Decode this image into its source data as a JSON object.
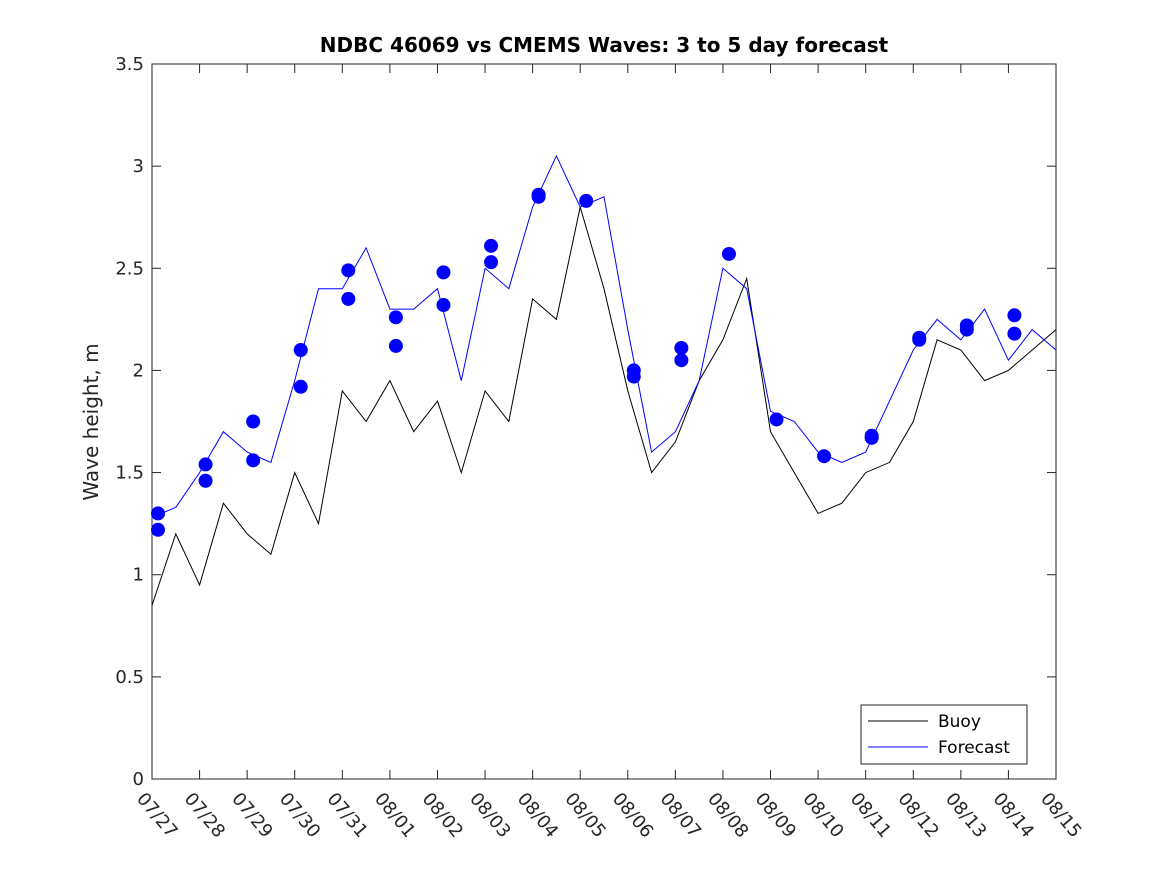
{
  "chart_data": {
    "type": "line",
    "title": "NDBC 46069 vs CMEMS Waves: 3 to 5 day forecast",
    "xlabel": "",
    "ylabel": "Wave height, m",
    "ylim": [
      0,
      3.5
    ],
    "xlim": [
      "07/27",
      "08/15"
    ],
    "grid": false,
    "legend_placement": "bottom-right",
    "x_ticks": [
      "07/27",
      "07/28",
      "07/29",
      "07/30",
      "07/31",
      "08/01",
      "08/02",
      "08/03",
      "08/04",
      "08/05",
      "08/06",
      "08/07",
      "08/08",
      "08/09",
      "08/10",
      "08/11",
      "08/12",
      "08/13",
      "08/14",
      "08/15"
    ],
    "y_ticks": [
      "0",
      "0.5",
      "1",
      "1.5",
      "2",
      "2.5",
      "3",
      "3.5"
    ],
    "colors": {
      "buoy": "#000000",
      "forecast": "#0000ff"
    },
    "series": [
      {
        "name": "Buoy",
        "x": [
          "07/27",
          "07/27 12:00",
          "07/28",
          "07/28 12:00",
          "07/29",
          "07/29 12:00",
          "07/30",
          "07/30 12:00",
          "07/31",
          "07/31 12:00",
          "08/01",
          "08/01 12:00",
          "08/02",
          "08/02 12:00",
          "08/03",
          "08/03 12:00",
          "08/04",
          "08/04 12:00",
          "08/05",
          "08/05 12:00",
          "08/06",
          "08/06 12:00",
          "08/07",
          "08/07 12:00",
          "08/08",
          "08/08 12:00",
          "08/09",
          "08/09 12:00",
          "08/10",
          "08/10 12:00",
          "08/11",
          "08/11 12:00",
          "08/12",
          "08/12 12:00",
          "08/13",
          "08/13 12:00",
          "08/14",
          "08/14 12:00",
          "08/15"
        ],
        "values": [
          0.85,
          1.2,
          0.95,
          1.35,
          1.2,
          1.1,
          1.5,
          1.25,
          1.9,
          1.75,
          1.95,
          1.7,
          1.85,
          1.5,
          1.9,
          1.75,
          2.35,
          2.25,
          2.8,
          2.4,
          1.9,
          1.5,
          1.65,
          1.95,
          2.15,
          2.45,
          1.7,
          1.5,
          1.3,
          1.35,
          1.5,
          1.55,
          1.75,
          2.15,
          2.1,
          1.95,
          2.0,
          2.1,
          2.2
        ]
      },
      {
        "name": "Forecast",
        "x": [
          "07/27",
          "07/27 12:00",
          "07/28",
          "07/28 12:00",
          "07/29",
          "07/29 12:00",
          "07/30",
          "07/30 12:00",
          "07/31",
          "07/31 12:00",
          "08/01",
          "08/01 12:00",
          "08/02",
          "08/02 12:00",
          "08/03",
          "08/03 12:00",
          "08/04",
          "08/04 12:00",
          "08/05",
          "08/05 12:00",
          "08/06",
          "08/06 12:00",
          "08/07",
          "08/07 12:00",
          "08/08",
          "08/08 12:00",
          "08/09",
          "08/09 12:00",
          "08/10",
          "08/10 12:00",
          "08/11",
          "08/11 12:00",
          "08/12",
          "08/12 12:00",
          "08/13",
          "08/13 12:00",
          "08/14",
          "08/14 12:00",
          "08/15"
        ],
        "values": [
          1.28,
          1.33,
          1.5,
          1.7,
          1.6,
          1.55,
          1.95,
          2.4,
          2.4,
          2.6,
          2.3,
          2.3,
          2.4,
          1.95,
          2.5,
          2.4,
          2.8,
          3.05,
          2.8,
          2.85,
          2.2,
          1.6,
          1.7,
          1.95,
          2.5,
          2.4,
          1.8,
          1.75,
          1.6,
          1.55,
          1.6,
          1.85,
          2.1,
          2.25,
          2.15,
          2.3,
          2.05,
          2.2,
          2.1
        ]
      }
    ],
    "markers": {
      "series": "Forecast",
      "points": [
        {
          "x": "07/27",
          "y": 1.3
        },
        {
          "x": "07/27",
          "y": 1.22
        },
        {
          "x": "07/28",
          "y": 1.54
        },
        {
          "x": "07/28",
          "y": 1.46
        },
        {
          "x": "07/29",
          "y": 1.75
        },
        {
          "x": "07/29",
          "y": 1.56
        },
        {
          "x": "07/30",
          "y": 2.1
        },
        {
          "x": "07/30",
          "y": 1.92
        },
        {
          "x": "07/31",
          "y": 2.49
        },
        {
          "x": "07/31",
          "y": 2.35
        },
        {
          "x": "08/01",
          "y": 2.26
        },
        {
          "x": "08/01",
          "y": 2.12
        },
        {
          "x": "08/02",
          "y": 2.48
        },
        {
          "x": "08/02",
          "y": 2.32
        },
        {
          "x": "08/03",
          "y": 2.61
        },
        {
          "x": "08/03",
          "y": 2.53
        },
        {
          "x": "08/04",
          "y": 2.86
        },
        {
          "x": "08/04",
          "y": 2.85
        },
        {
          "x": "08/05",
          "y": 2.83
        },
        {
          "x": "08/06",
          "y": 2.0
        },
        {
          "x": "08/06",
          "y": 1.97
        },
        {
          "x": "08/07",
          "y": 2.11
        },
        {
          "x": "08/07",
          "y": 2.05
        },
        {
          "x": "08/08",
          "y": 2.57
        },
        {
          "x": "08/09",
          "y": 1.76
        },
        {
          "x": "08/10",
          "y": 1.58
        },
        {
          "x": "08/11",
          "y": 1.67
        },
        {
          "x": "08/11",
          "y": 1.68
        },
        {
          "x": "08/12",
          "y": 2.16
        },
        {
          "x": "08/12",
          "y": 2.15
        },
        {
          "x": "08/13",
          "y": 2.22
        },
        {
          "x": "08/13",
          "y": 2.2
        },
        {
          "x": "08/14",
          "y": 2.27
        },
        {
          "x": "08/14",
          "y": 2.18
        }
      ]
    }
  }
}
